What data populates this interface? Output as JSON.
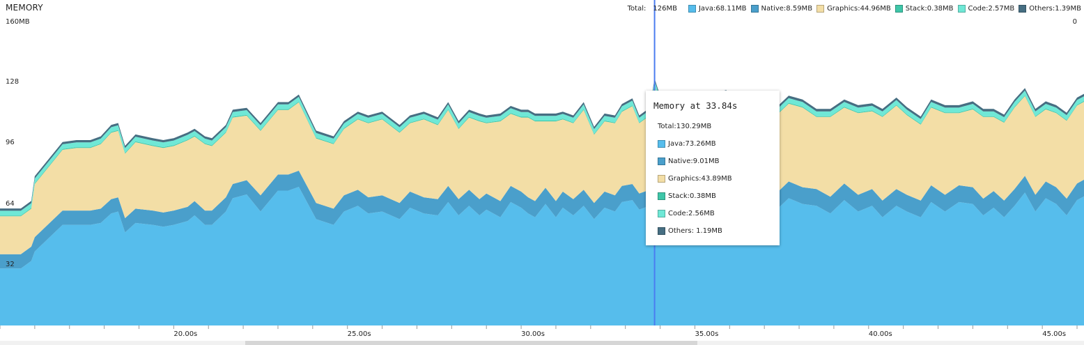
{
  "panel": {
    "title": "MEMORY"
  },
  "legend": {
    "total_label": "Total:",
    "total_value": "126MB",
    "items": [
      {
        "label": "Java:68.11MB",
        "color": "#56bdec"
      },
      {
        "label": "Native:8.59MB",
        "color": "#4a9fcb"
      },
      {
        "label": "Graphics:44.96MB",
        "color": "#f3dea6"
      },
      {
        "label": "Stack:0.38MB",
        "color": "#3ec6a8"
      },
      {
        "label": "Code:2.57MB",
        "color": "#6fe8d6"
      },
      {
        "label": "Others:1.39MB",
        "color": "#466e82"
      }
    ]
  },
  "y_axis": {
    "labels": [
      "160MB",
      "128",
      "96",
      "64",
      "32"
    ],
    "right_label": "0"
  },
  "tooltip": {
    "title": "Memory at 33.84s",
    "total": "Total:130.29MB",
    "rows": [
      {
        "label": "Java:73.26MB",
        "color": "#56bdec"
      },
      {
        "label": "Native:9.01MB",
        "color": "#4a9fcb"
      },
      {
        "label": "Graphics:43.89MB",
        "color": "#f3dea6"
      },
      {
        "label": "Stack:0.38MB",
        "color": "#3ec6a8"
      },
      {
        "label": "Code:2.56MB",
        "color": "#6fe8d6"
      },
      {
        "label": "Others: 1.19MB",
        "color": "#466e82"
      }
    ]
  },
  "chart_data": {
    "type": "area",
    "stacked": true,
    "ylim": [
      0,
      160
    ],
    "xlim": [
      15.0,
      46.2
    ],
    "x_tick_labels": [
      "20.00s",
      "25.00s",
      "30.00s",
      "35.00s",
      "40.00s",
      "45.00s"
    ],
    "x_tick_values": [
      20,
      25,
      30,
      35,
      40,
      45
    ],
    "cursor_x": 33.84,
    "x": [
      15.0,
      15.6,
      15.9,
      16.0,
      16.8,
      17.2,
      17.6,
      17.9,
      18.2,
      18.4,
      18.6,
      18.9,
      19.4,
      19.7,
      20.0,
      20.4,
      20.6,
      20.9,
      21.1,
      21.5,
      21.7,
      22.1,
      22.5,
      23.0,
      23.3,
      23.6,
      24.1,
      24.6,
      24.9,
      25.3,
      25.6,
      26.0,
      26.5,
      26.8,
      27.2,
      27.6,
      27.9,
      28.2,
      28.5,
      28.8,
      29.0,
      29.4,
      29.7,
      30.0,
      30.2,
      30.4,
      30.7,
      31.0,
      31.2,
      31.5,
      31.8,
      32.1,
      32.4,
      32.7,
      32.9,
      33.2,
      33.4,
      33.7,
      33.84,
      34.0,
      34.3,
      34.7,
      35.0,
      35.4,
      35.9,
      36.3,
      36.6,
      37.0,
      37.3,
      37.7,
      38.1,
      38.5,
      38.9,
      39.3,
      39.7,
      40.1,
      40.4,
      40.8,
      41.1,
      41.5,
      41.8,
      42.2,
      42.6,
      43.0,
      43.3,
      43.6,
      43.9,
      44.2,
      44.5,
      44.8,
      45.1,
      45.4,
      45.7,
      46.0,
      46.2
    ],
    "series": [
      {
        "name": "Java",
        "color": "#56bdec",
        "values": [
          30,
          30,
          34,
          39,
          53,
          53,
          53,
          54,
          59,
          60,
          49,
          54,
          53,
          52,
          53,
          55,
          58,
          53,
          53,
          60,
          67,
          69,
          60,
          71,
          71,
          73,
          56,
          53,
          60,
          63,
          59,
          60,
          56,
          62,
          59,
          58,
          65,
          58,
          63,
          58,
          61,
          57,
          65,
          62,
          59,
          57,
          64,
          57,
          62,
          58,
          63,
          56,
          62,
          60,
          65,
          66,
          61,
          63,
          73,
          66,
          66,
          63,
          61,
          64,
          69,
          66,
          60,
          64,
          60,
          67,
          64,
          63,
          59,
          66,
          60,
          63,
          57,
          63,
          60,
          57,
          65,
          60,
          65,
          64,
          58,
          62,
          57,
          63,
          70,
          60,
          67,
          64,
          58,
          66,
          68
        ]
      },
      {
        "name": "Native",
        "color": "#4a9fcb",
        "values": [
          7.5,
          7.5,
          7.5,
          7.5,
          7.5,
          7.5,
          7.5,
          7.5,
          7.5,
          7.5,
          7.5,
          7.5,
          7.5,
          7.5,
          7.5,
          7.5,
          7.5,
          7.5,
          7.5,
          7.5,
          7.5,
          7.5,
          8.5,
          8.5,
          8.5,
          8.5,
          8.5,
          8.5,
          8.5,
          8.5,
          8.5,
          8.5,
          8.5,
          8.5,
          8.5,
          8.5,
          8.5,
          8.5,
          8.5,
          8.5,
          8.5,
          8.5,
          8.5,
          8.5,
          8.5,
          8.5,
          8.5,
          8.5,
          8.5,
          8.5,
          8.5,
          8.5,
          8.5,
          8.5,
          8.5,
          8.5,
          8.5,
          8.5,
          9.01,
          8.8,
          8.8,
          8.8,
          8.8,
          8.8,
          8.8,
          8.8,
          8.8,
          8.8,
          8.8,
          8.8,
          8.8,
          8.8,
          8.8,
          8.8,
          8.8,
          8.8,
          8.8,
          8.8,
          8.8,
          8.8,
          8.8,
          8.8,
          8.8,
          8.8,
          8.8,
          8.8,
          8.8,
          8.8,
          8.8,
          8.8,
          8.8,
          8.8,
          8.8,
          8.8,
          8.8
        ]
      },
      {
        "name": "Graphics",
        "color": "#f3dea6",
        "values": [
          20,
          20,
          20,
          28,
          32,
          33,
          33,
          34,
          35,
          35,
          34,
          35,
          34,
          34,
          34,
          35,
          34,
          35,
          34,
          34,
          35,
          34,
          34,
          34,
          34,
          36,
          34,
          34,
          35,
          37,
          39,
          40,
          37,
          36,
          41,
          39,
          40,
          37,
          38,
          41,
          37,
          42,
          38,
          39,
          42,
          42,
          35,
          42,
          38,
          40,
          42,
          36,
          37,
          38,
          39,
          41,
          37,
          39,
          43.89,
          42,
          42,
          42,
          41,
          44,
          42,
          38,
          40,
          40,
          41,
          41,
          42,
          38,
          42,
          40,
          43,
          41,
          44,
          44,
          42,
          40,
          41,
          43,
          38,
          41,
          43,
          39,
          41,
          43,
          42,
          41,
          38,
          39,
          41,
          41,
          41
        ]
      },
      {
        "name": "Stack",
        "color": "#3ec6a8",
        "values": [
          0.4,
          0.4,
          0.4,
          0.4,
          0.4,
          0.4,
          0.4,
          0.4,
          0.4,
          0.4,
          0.4,
          0.4,
          0.4,
          0.4,
          0.4,
          0.4,
          0.4,
          0.4,
          0.4,
          0.4,
          0.4,
          0.4,
          0.4,
          0.4,
          0.4,
          0.4,
          0.4,
          0.4,
          0.4,
          0.4,
          0.4,
          0.4,
          0.4,
          0.4,
          0.4,
          0.4,
          0.4,
          0.4,
          0.4,
          0.4,
          0.4,
          0.4,
          0.4,
          0.4,
          0.4,
          0.4,
          0.4,
          0.4,
          0.4,
          0.4,
          0.4,
          0.4,
          0.4,
          0.4,
          0.4,
          0.4,
          0.4,
          0.4,
          0.38,
          0.4,
          0.4,
          0.4,
          0.4,
          0.4,
          0.4,
          0.4,
          0.4,
          0.4,
          0.4,
          0.4,
          0.4,
          0.4,
          0.4,
          0.4,
          0.4,
          0.4,
          0.4,
          0.4,
          0.4,
          0.4,
          0.4,
          0.4,
          0.4,
          0.4,
          0.4,
          0.4,
          0.4,
          0.4,
          0.4,
          0.4,
          0.4,
          0.4,
          0.4,
          0.4,
          0.4
        ]
      },
      {
        "name": "Code",
        "color": "#6fe8d6",
        "values": [
          2.5,
          2.5,
          2.5,
          2.5,
          2.5,
          2.5,
          2.5,
          2.5,
          2.5,
          2.5,
          2.5,
          2.5,
          2.5,
          2.5,
          2.5,
          2.5,
          2.5,
          2.5,
          2.5,
          2.5,
          2.5,
          2.5,
          2.5,
          2.5,
          2.5,
          2.5,
          2.5,
          2.5,
          2.5,
          2.5,
          2.5,
          2.5,
          2.5,
          2.5,
          2.5,
          2.5,
          2.5,
          2.5,
          2.5,
          2.5,
          2.5,
          2.5,
          2.5,
          2.5,
          2.5,
          2.5,
          2.5,
          2.5,
          2.5,
          2.5,
          2.5,
          2.5,
          2.5,
          2.5,
          2.5,
          2.5,
          2.5,
          2.5,
          2.56,
          2.5,
          2.5,
          2.5,
          2.5,
          2.5,
          2.5,
          2.5,
          2.5,
          2.5,
          2.5,
          2.5,
          2.5,
          2.5,
          2.5,
          2.5,
          2.5,
          2.5,
          2.5,
          2.5,
          2.5,
          2.5,
          2.5,
          2.5,
          2.5,
          2.5,
          2.5,
          2.5,
          2.5,
          2.5,
          2.5,
          2.5,
          2.5,
          2.5,
          2.5,
          2.5,
          2.5
        ]
      },
      {
        "name": "Others",
        "color": "#466e82",
        "values": [
          1.2,
          1.2,
          1.2,
          1.2,
          1.2,
          1.2,
          1.2,
          1.2,
          1.2,
          1.2,
          1.2,
          1.2,
          1.2,
          1.2,
          1.2,
          1.2,
          1.2,
          1.2,
          1.2,
          1.2,
          1.2,
          1.2,
          1.2,
          1.2,
          1.2,
          1.2,
          1.2,
          1.2,
          1.2,
          1.2,
          1.2,
          1.2,
          1.2,
          1.2,
          1.2,
          1.2,
          1.2,
          1.2,
          1.2,
          1.2,
          1.2,
          1.2,
          1.2,
          1.2,
          1.2,
          1.2,
          1.2,
          1.2,
          1.2,
          1.2,
          1.2,
          1.2,
          1.2,
          1.2,
          1.2,
          1.2,
          1.2,
          1.2,
          1.19,
          1.3,
          1.3,
          1.3,
          1.3,
          1.3,
          1.3,
          1.3,
          1.3,
          1.3,
          1.3,
          1.3,
          1.3,
          1.3,
          1.3,
          1.3,
          1.3,
          1.3,
          1.3,
          1.3,
          1.3,
          1.3,
          1.3,
          1.3,
          1.3,
          1.3,
          1.3,
          1.3,
          1.3,
          1.3,
          1.3,
          1.3,
          1.3,
          1.3,
          1.3,
          1.3,
          1.3
        ]
      }
    ]
  }
}
